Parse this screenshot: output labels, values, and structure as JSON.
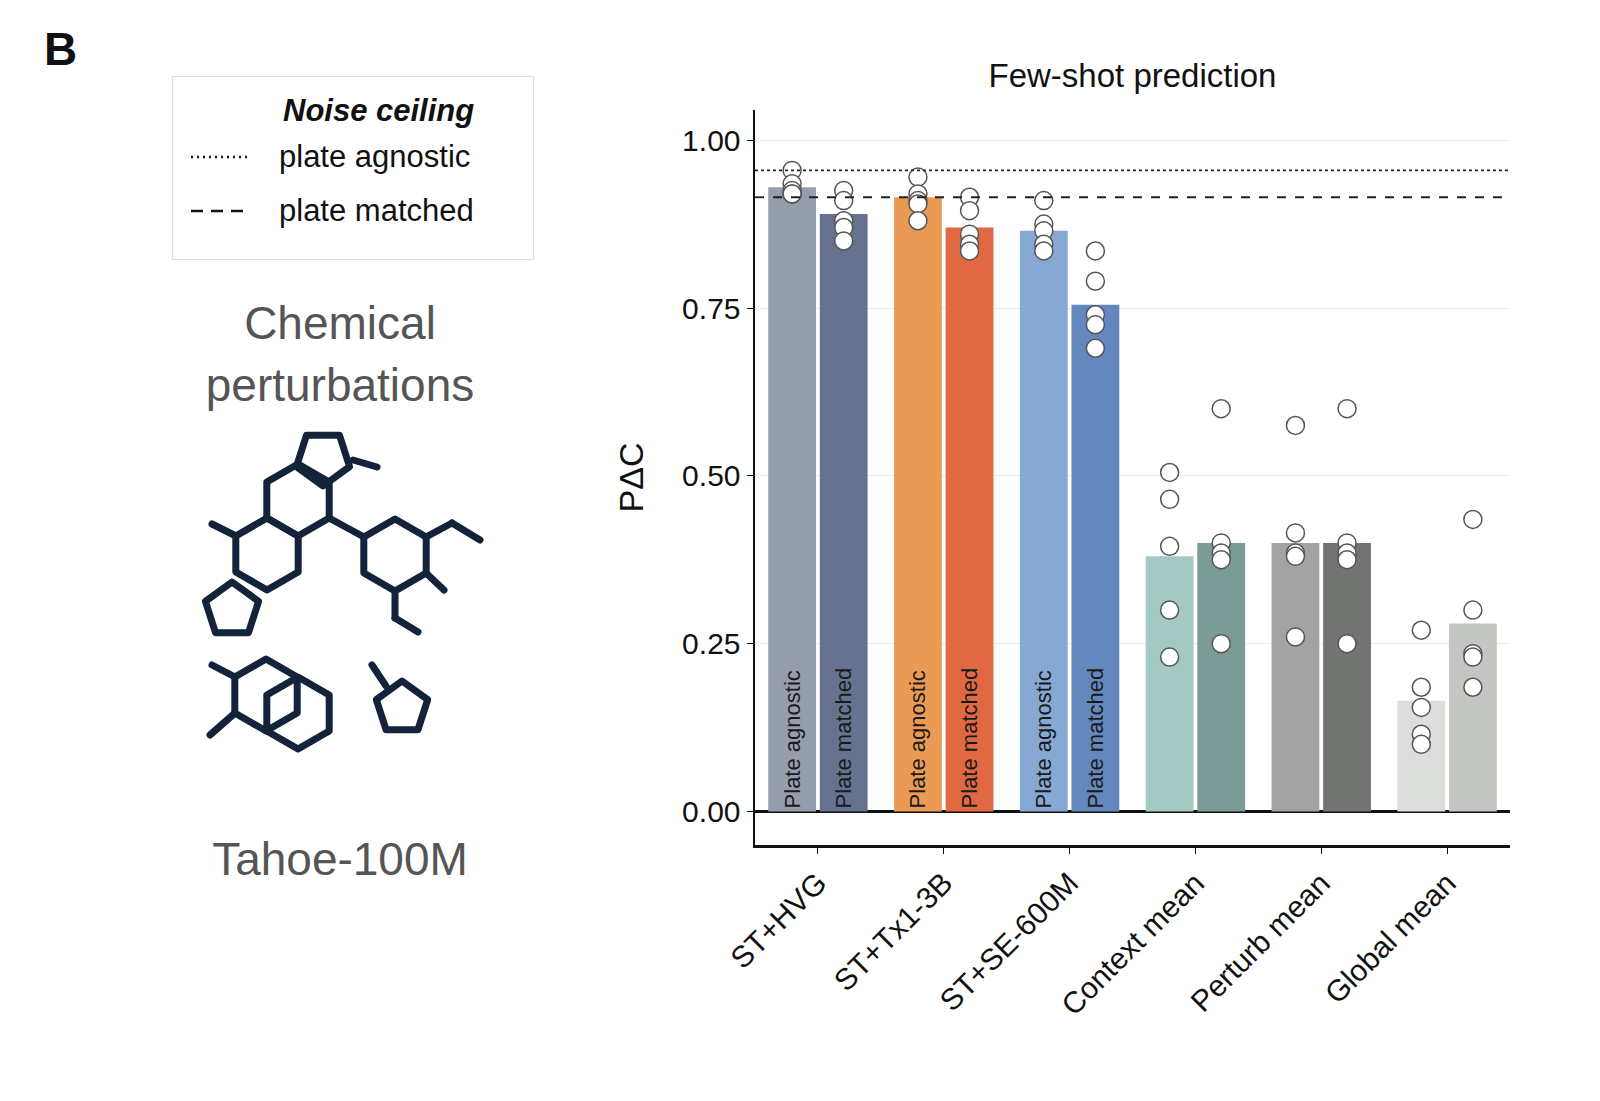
{
  "panel_letter": "B",
  "legend_box": {
    "title": "Noise ceiling",
    "entries": [
      {
        "name": "plate agnostic",
        "line_style": "dot"
      },
      {
        "name": "plate matched",
        "line_style": "dash"
      }
    ]
  },
  "side_panel": {
    "title": "Chemical perturbations",
    "caption": "Tahoe-100M"
  },
  "chart_data": {
    "type": "bar",
    "title": "Few-shot prediction",
    "y_label": "PΔC",
    "categories": [
      "ST+HVG",
      "ST+Tx1-3B",
      "ST+SE-600M",
      "Context mean",
      "Perturb mean",
      "Global mean"
    ],
    "series": [
      {
        "name": "Plate agnostic",
        "colors": [
          "#969eae",
          "#eb9a55",
          "#86a8d2",
          "#a3c9c2",
          "#a3a3a3",
          "#dcdedb"
        ],
        "values": [
          0.93,
          0.915,
          0.865,
          0.38,
          0.4,
          0.165
        ],
        "bar_text": [
          "Plate agnostic",
          "Plate agnostic",
          "Plate agnostic",
          null,
          null,
          null
        ],
        "points": [
          [
            0.955,
            0.935,
            0.925,
            0.92,
            0.92
          ],
          [
            0.945,
            0.92,
            0.91,
            0.905,
            0.88
          ],
          [
            0.91,
            0.875,
            0.865,
            0.845,
            0.835
          ],
          [
            0.505,
            0.465,
            0.395,
            0.3,
            0.23
          ],
          [
            0.575,
            0.415,
            0.385,
            0.38,
            0.26
          ],
          [
            0.27,
            0.185,
            0.155,
            0.115,
            0.1
          ]
        ]
      },
      {
        "name": "Plate matched",
        "colors": [
          "#66728f",
          "#e06842",
          "#6487be",
          "#7a9b96",
          "#727472",
          "#c4c6c2"
        ],
        "values": [
          0.89,
          0.87,
          0.755,
          0.4,
          0.4,
          0.28
        ],
        "bar_text": [
          "Plate matched",
          "Plate matched",
          "Plate matched",
          null,
          null,
          null
        ],
        "points": [
          [
            0.925,
            0.91,
            0.88,
            0.87,
            0.85
          ],
          [
            0.915,
            0.895,
            0.86,
            0.845,
            0.835
          ],
          [
            0.835,
            0.79,
            0.74,
            0.725,
            0.69
          ],
          [
            0.6,
            0.4,
            0.385,
            0.375,
            0.25
          ],
          [
            0.6,
            0.4,
            0.385,
            0.375,
            0.25
          ],
          [
            0.435,
            0.3,
            0.235,
            0.23,
            0.185
          ]
        ]
      }
    ],
    "reference_lines": [
      {
        "name": "plate agnostic",
        "value": 0.955,
        "line_style": "dot"
      },
      {
        "name": "plate matched",
        "value": 0.915,
        "line_style": "dash"
      }
    ],
    "ylim": [
      -0.05,
      1.045
    ],
    "yticks": [
      {
        "value": 0,
        "label": "0.00"
      },
      {
        "value": 0.25,
        "label": "0.25"
      },
      {
        "value": 0.5,
        "label": "0.50"
      },
      {
        "value": 0.75,
        "label": "0.75"
      },
      {
        "value": 1,
        "label": "1.00"
      }
    ],
    "grid": true,
    "data_labels": false
  }
}
